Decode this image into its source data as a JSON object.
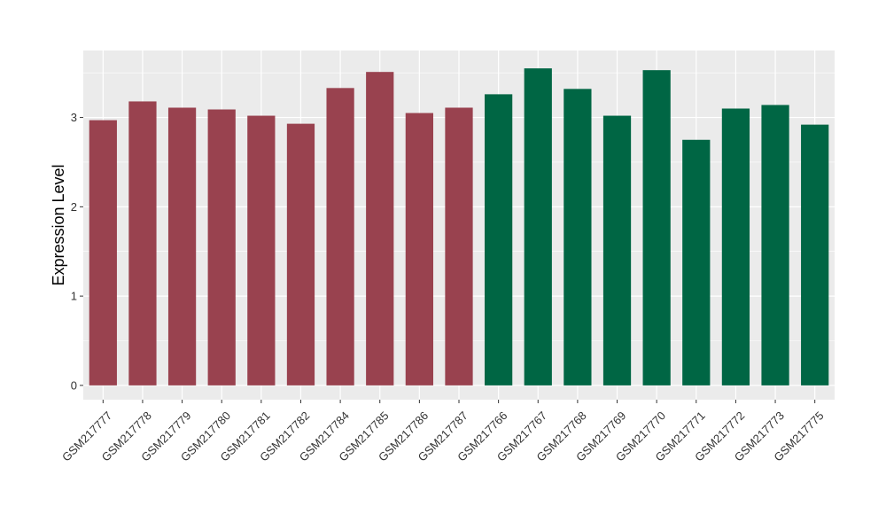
{
  "chart_data": {
    "type": "bar",
    "title": "",
    "xlabel": "",
    "ylabel": "Expression Level",
    "ylim": [
      -0.16,
      3.75
    ],
    "yticks": [
      0,
      1,
      2,
      3
    ],
    "grid": true,
    "categories": [
      "GSM217777",
      "GSM217778",
      "GSM217779",
      "GSM217780",
      "GSM217781",
      "GSM217782",
      "GSM217784",
      "GSM217785",
      "GSM217786",
      "GSM217787",
      "GSM217766",
      "GSM217767",
      "GSM217768",
      "GSM217769",
      "GSM217770",
      "GSM217771",
      "GSM217772",
      "GSM217773",
      "GSM217775"
    ],
    "values": [
      2.97,
      3.18,
      3.11,
      3.09,
      3.02,
      2.93,
      3.33,
      3.51,
      3.05,
      3.11,
      3.26,
      3.55,
      3.32,
      3.02,
      3.53,
      2.75,
      3.1,
      3.14,
      2.92
    ],
    "groups": [
      "g1",
      "g1",
      "g1",
      "g1",
      "g1",
      "g1",
      "g1",
      "g1",
      "g1",
      "g1",
      "g2",
      "g2",
      "g2",
      "g2",
      "g2",
      "g2",
      "g2",
      "g2",
      "g2"
    ],
    "colors": {
      "g1": "#99424f",
      "g2": "#006644",
      "panel": "#ebebeb",
      "grid": "#ffffff"
    }
  }
}
